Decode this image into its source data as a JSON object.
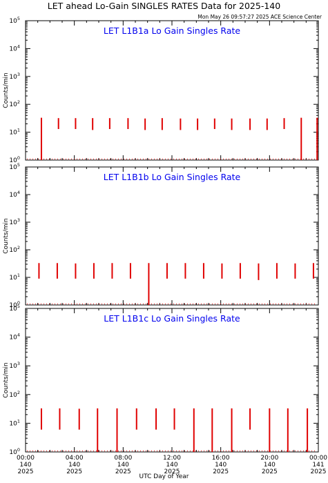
{
  "title": "LET ahead Lo-Gain SINGLES RATES Data for 2025-140",
  "timestamp": "Mon May 26 09:57:27 2025 ACE Science Center",
  "xlabel": "UTC Day of Year",
  "colors": {
    "data": "#e00000",
    "panel_title": "#0000ee",
    "axes": "#000000"
  },
  "chart_data": [
    {
      "type": "line",
      "title": "LET L1B1a Lo Gain Singles Rate",
      "ylabel": "Counts/min",
      "yscale": "log",
      "ylim": [
        1,
        100000
      ],
      "yticks": [
        "10^0",
        "10^1",
        "10^2",
        "10^3",
        "10^4",
        "10^5"
      ],
      "xlim": [
        0,
        24
      ],
      "series": [
        {
          "spikes_hours": [
            1.3,
            2.7,
            4.1,
            5.5,
            6.9,
            8.4,
            9.8,
            11.2,
            12.7,
            14.1,
            15.5,
            16.9,
            18.4,
            19.8,
            21.2,
            22.6,
            23.9
          ],
          "spike_top": [
            33,
            32,
            32,
            32,
            32,
            32,
            31,
            32,
            31,
            31,
            31,
            31,
            31,
            31,
            32,
            33,
            33
          ],
          "spike_bottom": [
            1,
            13,
            13,
            12,
            13,
            13,
            12,
            12,
            12,
            12,
            13,
            12,
            12,
            12,
            13,
            1,
            1
          ]
        }
      ]
    },
    {
      "type": "line",
      "title": "LET L1B1b Lo Gain Singles Rate",
      "ylabel": "Counts/min",
      "yscale": "log",
      "ylim": [
        1,
        100000
      ],
      "yticks": [
        "10^0",
        "10^1",
        "10^2",
        "10^3",
        "10^4",
        "10^5"
      ],
      "xlim": [
        0,
        24
      ],
      "series": [
        {
          "spikes_hours": [
            1.1,
            2.6,
            4.1,
            5.6,
            7.1,
            8.6,
            10.1,
            11.6,
            13.1,
            14.6,
            16.1,
            17.6,
            19.1,
            20.6,
            22.1,
            23.6
          ],
          "spike_top": [
            33,
            33,
            32,
            33,
            33,
            33,
            33,
            33,
            33,
            33,
            32,
            33,
            32,
            33,
            32,
            33
          ],
          "spike_bottom": [
            9,
            9,
            9,
            9,
            9,
            9,
            1,
            9,
            9,
            9,
            9,
            9,
            8,
            9,
            9,
            9
          ]
        }
      ]
    },
    {
      "type": "line",
      "title": "LET L1B1c Lo Gain Singles Rate",
      "ylabel": "Counts/min",
      "yscale": "log",
      "ylim": [
        1,
        100000
      ],
      "yticks": [
        "10^0",
        "10^1",
        "10^2",
        "10^3",
        "10^4",
        "10^5"
      ],
      "xlim": [
        0,
        24
      ],
      "xticks": [
        {
          "time": "00:00",
          "day": "140",
          "year": "2025"
        },
        {
          "time": "04:00",
          "day": "140",
          "year": "2025"
        },
        {
          "time": "08:00",
          "day": "140",
          "year": "2025"
        },
        {
          "time": "12:00",
          "day": "140",
          "year": "2025"
        },
        {
          "time": "16:00",
          "day": "140",
          "year": "2025"
        },
        {
          "time": "20:00",
          "day": "140",
          "year": "2025"
        },
        {
          "time": "00:00",
          "day": "141",
          "year": "2025"
        }
      ],
      "series": [
        {
          "spikes_hours": [
            1.3,
            2.8,
            4.4,
            5.9,
            7.5,
            9.1,
            10.7,
            12.2,
            13.8,
            15.3,
            16.9,
            18.4,
            20.0,
            21.5,
            23.1
          ],
          "spike_top": [
            33,
            33,
            32,
            33,
            33,
            33,
            33,
            33,
            33,
            33,
            33,
            33,
            33,
            33,
            33
          ],
          "spike_bottom": [
            6,
            6,
            6,
            1,
            1,
            6,
            6,
            6,
            1,
            1,
            1,
            6,
            1,
            1,
            1
          ]
        }
      ]
    }
  ]
}
